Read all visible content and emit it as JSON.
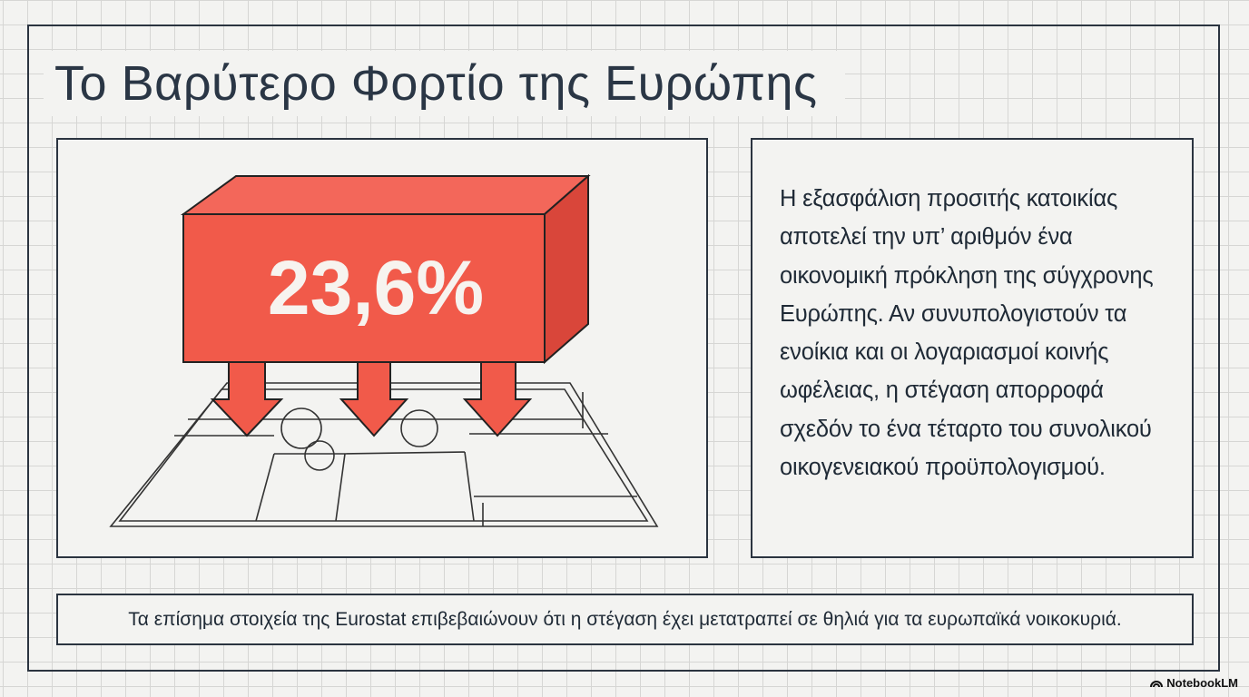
{
  "header": {
    "title": "Το Βαρύτερο Φορτίο της Ευρώπης"
  },
  "illustration": {
    "stat": "23,6%"
  },
  "body": {
    "paragraph": "Η εξασφάλιση προσιτής κατοικίας αποτελεί την υπ’ αριθμόν ένα οικονομική πρόκληση της σύγχρονης Ευρώπης. Αν συνυπολογιστούν τα ενοίκια και οι λογαριασμοί κοινής ωφέλειας, η στέγαση απορροφά σχεδόν το ένα τέταρτο του συνολικού οικογενειακού προϋπολογισμού."
  },
  "footer": {
    "text": "Τα επίσημα στοιχεία της Eurostat επιβεβαιώνουν ότι η στέγαση έχει μετατραπεί σε θηλιά για τα ευρωπαϊκά νοικοκυριά."
  },
  "brand": {
    "label": "NotebookLM"
  }
}
